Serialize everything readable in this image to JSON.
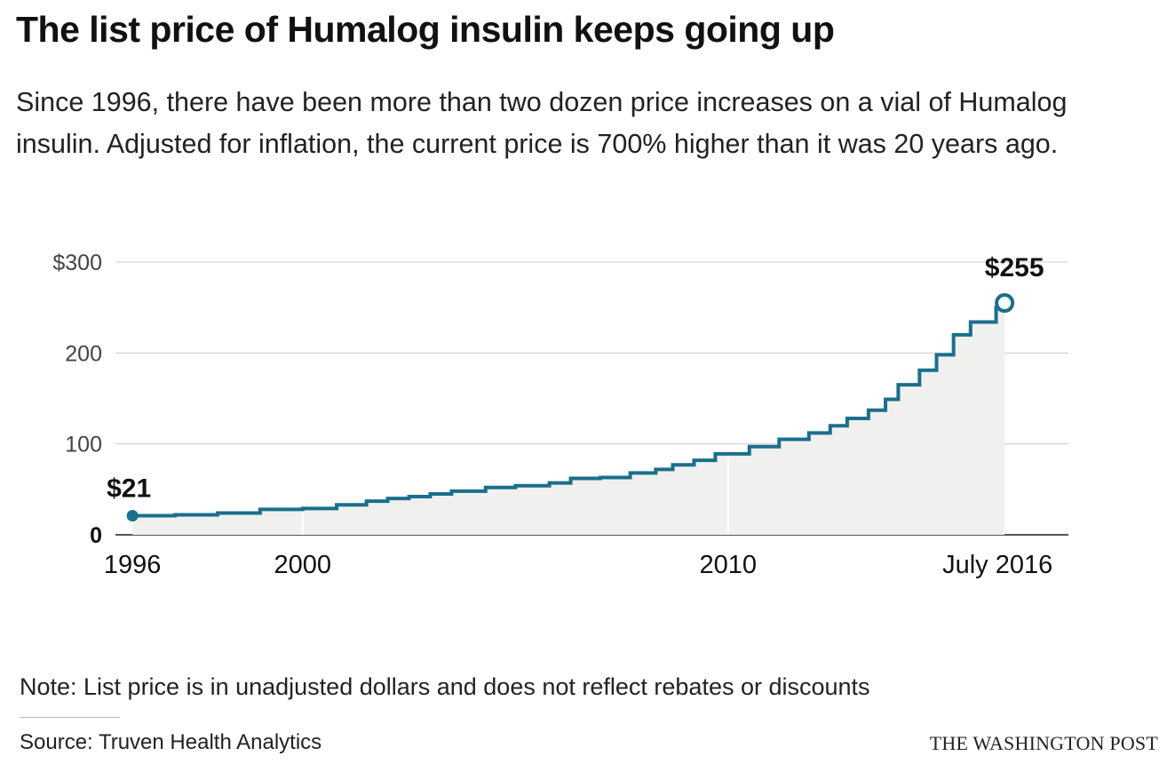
{
  "title": "The list price of Humalog insulin keeps going up",
  "subtitle": "Since 1996, there have been more than two dozen price increases on a vial of Humalog insulin. Adjusted for inflation, the current price is 700% higher than it was 20 years ago.",
  "note": "Note: List price is in unadjusted dollars and does not reflect rebates or discounts",
  "source": "Source: Truven Health Analytics",
  "credit": "THE WASHINGTON POST",
  "colors": {
    "line": "#1a6f8c",
    "area": "#f0f0ef",
    "grid": "#cccccc",
    "axis": "#555555"
  },
  "chart_data": {
    "type": "area",
    "step": true,
    "ylim": [
      0,
      300
    ],
    "xlim": [
      1995.6,
      2018.0
    ],
    "y_ticks": [
      {
        "value": 0,
        "label": "0"
      },
      {
        "value": 100,
        "label": "100"
      },
      {
        "value": 200,
        "label": "200"
      },
      {
        "value": 300,
        "label": "$300"
      }
    ],
    "x_ticks": [
      {
        "value": 1996,
        "label": "1996"
      },
      {
        "value": 2000,
        "label": "2000"
      },
      {
        "value": 2010,
        "label": "2010"
      },
      {
        "value": 2016.5,
        "label": "July 2016"
      }
    ],
    "grid": true,
    "annotations": [
      {
        "x": 1996,
        "y": 21,
        "label": "$21"
      },
      {
        "x": 2016.5,
        "y": 255,
        "label": "$255"
      }
    ],
    "series": [
      {
        "x": [
          1996.0,
          1997.0,
          1998.0,
          1999.0,
          2000.0,
          2000.8,
          2001.5,
          2002.0,
          2002.5,
          2003.0,
          2003.5,
          2004.3,
          2005.0,
          2005.8,
          2006.3,
          2007.0,
          2007.7,
          2008.3,
          2008.7,
          2009.2,
          2009.7,
          2010.5,
          2011.2,
          2011.9,
          2012.4,
          2012.8,
          2013.3,
          2013.7,
          2014.0,
          2014.5,
          2014.9,
          2015.3,
          2015.7,
          2016.3,
          2016.5
        ],
        "values": [
          21,
          22,
          24,
          28,
          29,
          33,
          37,
          40,
          42,
          45,
          48,
          52,
          54,
          57,
          62,
          63,
          68,
          72,
          77,
          82,
          89,
          97,
          105,
          112,
          120,
          128,
          137,
          149,
          165,
          181,
          198,
          220,
          234,
          250,
          255
        ]
      }
    ]
  }
}
